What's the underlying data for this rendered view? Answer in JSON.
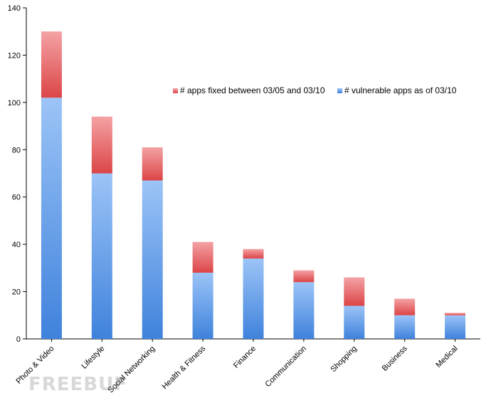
{
  "chart_data": {
    "type": "bar",
    "stacked": true,
    "categories": [
      "Photo & Video",
      "Lifestyle",
      "Social Networking",
      "Health & Fitness",
      "Finance",
      "Communication",
      "Shopping",
      "Business",
      "Medical"
    ],
    "series": [
      {
        "name": "# vulnerable apps as of 03/10",
        "values": [
          102,
          70,
          67,
          28,
          34,
          24,
          14,
          10,
          10
        ],
        "color": "#5b9bea"
      },
      {
        "name": "# apps fixed between 03/05 and 03/10",
        "values": [
          28,
          24,
          14,
          13,
          4,
          5,
          12,
          7,
          1
        ],
        "color": "#e8595b"
      }
    ],
    "ylim": [
      0,
      140
    ],
    "yticks": [
      0,
      20,
      40,
      60,
      80,
      100,
      120,
      140
    ],
    "grid": false,
    "legend_position": "top-right",
    "title": "",
    "xlabel": "",
    "ylabel": ""
  },
  "watermark": "FREEBUF"
}
